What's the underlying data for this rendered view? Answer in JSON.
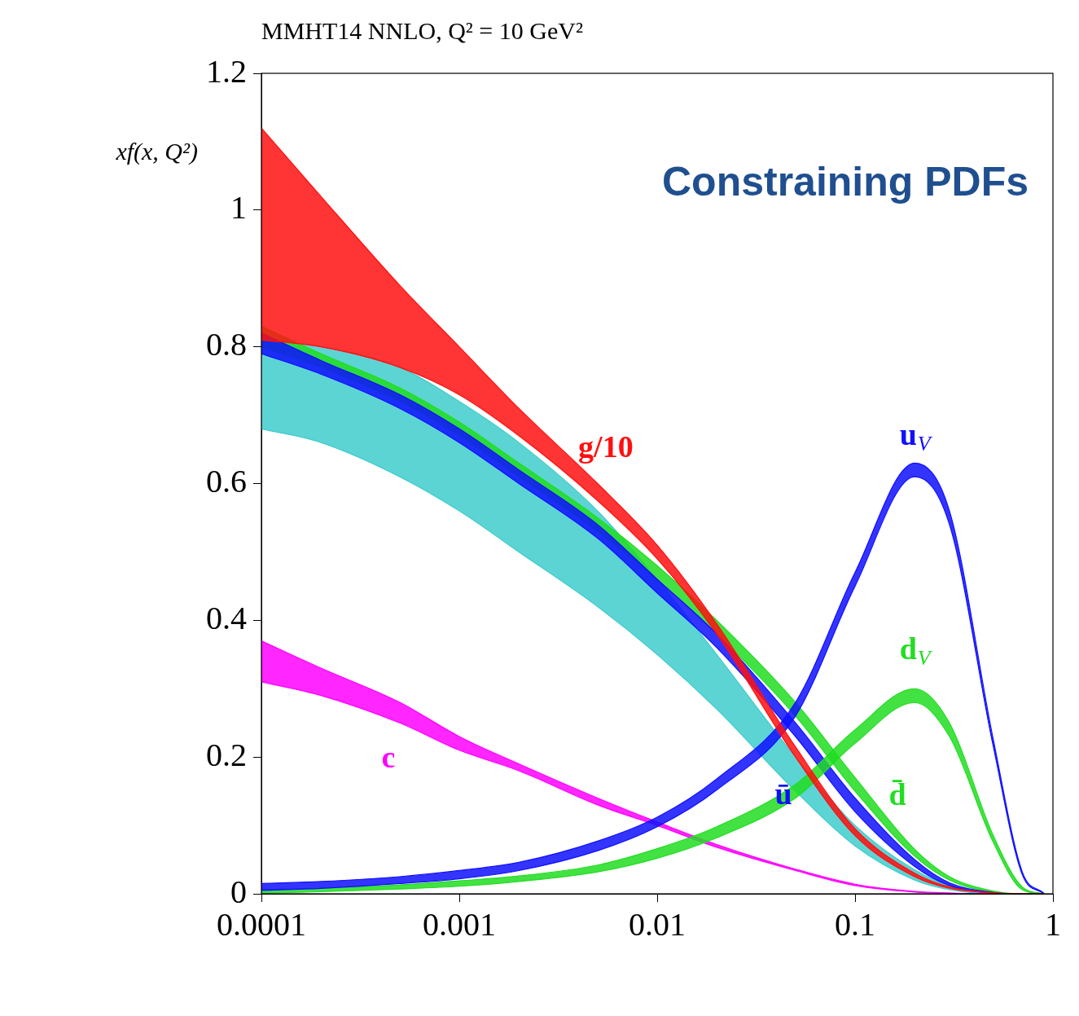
{
  "chart_data": {
    "type": "line",
    "title": "MMHT14 NNLO, Q² = 10 GeV²",
    "y_label": "xf(x, Q²)",
    "annotations": [
      "Constraining PDFs"
    ],
    "log": "x",
    "grid": false,
    "xlim": [
      0.0001,
      1
    ],
    "ylim": [
      0,
      1.2
    ],
    "xticks": [
      0.0001,
      0.001,
      0.01,
      0.1,
      1
    ],
    "yticks": [
      0,
      0.2,
      0.4,
      0.6,
      0.8,
      1,
      1.2
    ],
    "x": [
      0.0001,
      0.0002,
      0.0005,
      0.001,
      0.002,
      0.005,
      0.01,
      0.02,
      0.05,
      0.1,
      0.2,
      0.3,
      0.5,
      0.7,
      0.9
    ],
    "series": [
      {
        "name": "g/10",
        "color": "#ff1010",
        "lower": [
          0.81,
          0.8,
          0.77,
          0.73,
          0.67,
          0.575,
          0.49,
          0.38,
          0.2,
          0.085,
          0.025,
          0.008,
          0.001,
          0,
          0
        ],
        "upper": [
          1.12,
          1.02,
          0.89,
          0.8,
          0.71,
          0.6,
          0.51,
          0.395,
          0.215,
          0.095,
          0.03,
          0.01,
          0.0015,
          0,
          0
        ]
      },
      {
        "name": "uV",
        "color": "#1010ff",
        "lower": [
          0.005,
          0.008,
          0.015,
          0.022,
          0.034,
          0.063,
          0.098,
          0.152,
          0.26,
          0.45,
          0.61,
          0.54,
          0.215,
          0.028,
          0
        ],
        "upper": [
          0.015,
          0.018,
          0.025,
          0.034,
          0.046,
          0.077,
          0.112,
          0.168,
          0.28,
          0.47,
          0.63,
          0.56,
          0.225,
          0.032,
          0.001
        ]
      },
      {
        "name": "dV",
        "color": "#22dd22",
        "lower": [
          0.001,
          0.003,
          0.007,
          0.011,
          0.018,
          0.032,
          0.052,
          0.082,
          0.14,
          0.22,
          0.28,
          0.23,
          0.075,
          0.006,
          0
        ],
        "upper": [
          0.006,
          0.008,
          0.013,
          0.019,
          0.026,
          0.042,
          0.066,
          0.098,
          0.16,
          0.24,
          0.3,
          0.25,
          0.085,
          0.01,
          0
        ]
      },
      {
        "name": "ū",
        "color": "#1010ff",
        "lower": [
          0.79,
          0.76,
          0.71,
          0.66,
          0.6,
          0.52,
          0.44,
          0.36,
          0.23,
          0.12,
          0.04,
          0.012,
          0.001,
          0,
          0
        ],
        "upper": [
          0.82,
          0.78,
          0.73,
          0.68,
          0.62,
          0.54,
          0.46,
          0.38,
          0.25,
          0.14,
          0.05,
          0.016,
          0.002,
          0,
          0
        ]
      },
      {
        "name": "d̄",
        "color": "#22dd22",
        "lower": [
          0.8,
          0.77,
          0.72,
          0.67,
          0.61,
          0.53,
          0.46,
          0.38,
          0.26,
          0.15,
          0.055,
          0.02,
          0.002,
          0,
          0
        ],
        "upper": [
          0.83,
          0.79,
          0.74,
          0.69,
          0.63,
          0.55,
          0.48,
          0.4,
          0.28,
          0.17,
          0.065,
          0.025,
          0.004,
          0,
          0
        ]
      },
      {
        "name": "c",
        "color": "#ff00ff",
        "lower": [
          0.31,
          0.29,
          0.25,
          0.21,
          0.18,
          0.13,
          0.1,
          0.068,
          0.034,
          0.012,
          0.0025,
          0.0008,
          0,
          0,
          0
        ],
        "upper": [
          0.37,
          0.33,
          0.28,
          0.23,
          0.19,
          0.14,
          0.105,
          0.072,
          0.036,
          0.014,
          0.0035,
          0.0012,
          0,
          0,
          0
        ]
      },
      {
        "name": null,
        "color": "#40cccc",
        "lower": [
          0.68,
          0.66,
          0.61,
          0.56,
          0.5,
          0.42,
          0.35,
          0.27,
          0.15,
          0.07,
          0.02,
          0.006,
          0,
          0,
          0
        ],
        "upper": [
          0.81,
          0.8,
          0.77,
          0.72,
          0.66,
          0.56,
          0.46,
          0.35,
          0.2,
          0.1,
          0.035,
          0.012,
          0.001,
          0,
          0
        ]
      }
    ]
  }
}
